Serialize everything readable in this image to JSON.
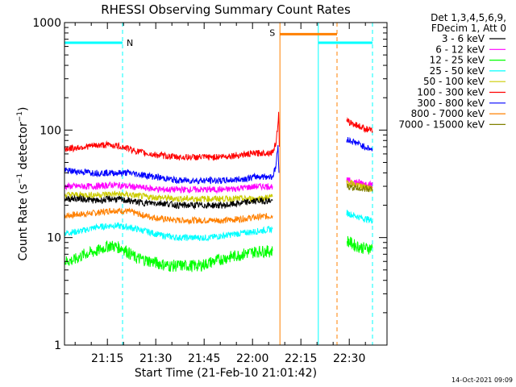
{
  "chart_data": {
    "type": "line",
    "title": "RHESSI Observing Summary Count Rates",
    "xlabel": "Start Time (21-Feb-10 21:01:42)",
    "ylabel": "Count Rate (s",
    "ylabel_sup": "−1",
    "ylabel_tail": " detector",
    "ylabel_tail_sup": "−1",
    "ylabel_end": ")",
    "y_scale": "log",
    "ylim": [
      1,
      1000
    ],
    "xlim_minutes": [
      0,
      100
    ],
    "x_ticks": [
      {
        "t": 13.3,
        "label": "21:15"
      },
      {
        "t": 28.3,
        "label": "21:30"
      },
      {
        "t": 43.3,
        "label": "21:45"
      },
      {
        "t": 58.3,
        "label": "22:00"
      },
      {
        "t": 73.3,
        "label": "22:15"
      },
      {
        "t": 88.3,
        "label": "22:30"
      }
    ],
    "y_ticks": [
      {
        "v": 1,
        "label": "1"
      },
      {
        "v": 10,
        "label": "10"
      },
      {
        "v": 100,
        "label": "100"
      },
      {
        "v": 1000,
        "label": "1000"
      }
    ],
    "legend_header": [
      "Det 1,3,4,5,6,9,",
      "FDecim 1, Att 0"
    ],
    "series": [
      {
        "name": "3 - 6 keV",
        "color": "#000000",
        "pre": [
          [
            0,
            23
          ],
          [
            5,
            23
          ],
          [
            10,
            22
          ],
          [
            15,
            23
          ],
          [
            20,
            22
          ],
          [
            25,
            21
          ],
          [
            30,
            21
          ],
          [
            35,
            20
          ],
          [
            40,
            20
          ],
          [
            45,
            20
          ],
          [
            50,
            20
          ],
          [
            55,
            21
          ],
          [
            60,
            22
          ],
          [
            64.5,
            22
          ]
        ],
        "post": []
      },
      {
        "name": "6 - 12 keV",
        "color": "#ff00ff",
        "pre": [
          [
            0,
            30
          ],
          [
            5,
            30
          ],
          [
            10,
            30
          ],
          [
            15,
            31
          ],
          [
            20,
            30
          ],
          [
            25,
            29
          ],
          [
            30,
            28
          ],
          [
            35,
            28
          ],
          [
            40,
            28
          ],
          [
            45,
            28
          ],
          [
            50,
            28
          ],
          [
            55,
            29
          ],
          [
            60,
            30
          ],
          [
            64.5,
            30
          ]
        ],
        "post": [
          [
            87.5,
            34
          ],
          [
            90,
            33
          ],
          [
            93,
            32
          ],
          [
            95.5,
            31
          ]
        ]
      },
      {
        "name": "12 - 25 keV",
        "color": "#00ff00",
        "pre": [
          [
            0,
            6
          ],
          [
            3,
            6.2
          ],
          [
            6,
            7
          ],
          [
            10,
            7.5
          ],
          [
            14,
            8.5
          ],
          [
            18,
            8
          ],
          [
            22,
            6.5
          ],
          [
            27,
            6
          ],
          [
            32,
            5.5
          ],
          [
            37,
            5.5
          ],
          [
            42,
            5.5
          ],
          [
            46,
            6
          ],
          [
            50,
            6.5
          ],
          [
            55,
            7
          ],
          [
            60,
            7.5
          ],
          [
            64.5,
            7.5
          ]
        ],
        "post": [
          [
            87.5,
            9.5
          ],
          [
            90,
            8.5
          ],
          [
            93,
            8
          ],
          [
            95.5,
            8
          ]
        ]
      },
      {
        "name": "25 - 50 keV",
        "color": "#00ffff",
        "pre": [
          [
            0,
            11
          ],
          [
            5,
            11.5
          ],
          [
            10,
            12.5
          ],
          [
            15,
            13
          ],
          [
            20,
            12.5
          ],
          [
            25,
            11.5
          ],
          [
            30,
            10.5
          ],
          [
            35,
            10
          ],
          [
            40,
            10
          ],
          [
            45,
            10
          ],
          [
            50,
            10.5
          ],
          [
            55,
            11
          ],
          [
            60,
            11.5
          ],
          [
            64.5,
            12
          ]
        ],
        "post": [
          [
            87.5,
            17
          ],
          [
            90,
            16
          ],
          [
            93,
            15
          ],
          [
            95.5,
            14.5
          ]
        ]
      },
      {
        "name": "50 - 100 keV",
        "color": "#cccc00",
        "pre": [
          [
            0,
            25
          ],
          [
            5,
            25
          ],
          [
            10,
            25
          ],
          [
            15,
            25.5
          ],
          [
            20,
            25
          ],
          [
            25,
            24
          ],
          [
            30,
            23.5
          ],
          [
            35,
            23
          ],
          [
            40,
            23
          ],
          [
            45,
            23
          ],
          [
            50,
            23
          ],
          [
            55,
            23
          ],
          [
            60,
            23
          ],
          [
            64.5,
            24
          ]
        ],
        "post": [
          [
            87.5,
            33
          ],
          [
            90,
            31
          ],
          [
            93,
            30
          ],
          [
            95.5,
            28
          ]
        ]
      },
      {
        "name": "100 - 300 keV",
        "color": "#ff0000",
        "pre": [
          [
            0,
            67
          ],
          [
            3,
            68
          ],
          [
            6,
            70
          ],
          [
            10,
            72
          ],
          [
            14,
            73
          ],
          [
            18,
            70
          ],
          [
            22,
            64
          ],
          [
            26,
            60
          ],
          [
            30,
            58
          ],
          [
            35,
            56
          ],
          [
            40,
            56
          ],
          [
            45,
            56
          ],
          [
            50,
            57
          ],
          [
            55,
            59
          ],
          [
            60,
            61
          ],
          [
            64.5,
            62
          ],
          [
            65.5,
            75
          ],
          [
            66,
            100
          ],
          [
            66.4,
            140
          ],
          [
            66.6,
            70
          ]
        ],
        "post": [
          [
            87.5,
            120
          ],
          [
            88.5,
            118
          ],
          [
            91,
            110
          ],
          [
            93,
            104
          ],
          [
            95.5,
            98
          ]
        ]
      },
      {
        "name": "300 - 800 keV",
        "color": "#0000ff",
        "pre": [
          [
            0,
            42
          ],
          [
            5,
            41
          ],
          [
            10,
            40
          ],
          [
            15,
            40
          ],
          [
            20,
            40
          ],
          [
            25,
            38
          ],
          [
            30,
            36
          ],
          [
            35,
            34
          ],
          [
            40,
            34
          ],
          [
            45,
            34
          ],
          [
            50,
            34
          ],
          [
            55,
            35
          ],
          [
            60,
            37
          ],
          [
            64.5,
            37
          ],
          [
            65.5,
            45
          ],
          [
            66.2,
            70
          ],
          [
            66.5,
            40
          ]
        ],
        "post": [
          [
            87.5,
            82
          ],
          [
            88.5,
            80
          ],
          [
            91,
            75
          ],
          [
            93,
            70
          ],
          [
            95.5,
            66
          ]
        ]
      },
      {
        "name": "800 - 7000 keV",
        "color": "#ff8000",
        "pre": [
          [
            0,
            16
          ],
          [
            5,
            16.5
          ],
          [
            10,
            17
          ],
          [
            15,
            18
          ],
          [
            20,
            17.5
          ],
          [
            25,
            16
          ],
          [
            30,
            15
          ],
          [
            35,
            14.5
          ],
          [
            40,
            14.5
          ],
          [
            45,
            14.5
          ],
          [
            50,
            14.5
          ],
          [
            55,
            15
          ],
          [
            60,
            15.5
          ],
          [
            64.5,
            16
          ]
        ],
        "post": [
          [
            87.5,
            33
          ],
          [
            88.5,
            32
          ],
          [
            91,
            31
          ],
          [
            93,
            30
          ],
          [
            95.5,
            29
          ]
        ]
      },
      {
        "name": "7000 - 15000 keV",
        "color": "#808000",
        "pre": [],
        "post": [
          [
            87.5,
            30
          ],
          [
            90,
            29
          ],
          [
            93,
            28.5
          ],
          [
            95.5,
            28
          ]
        ]
      }
    ],
    "flags": {
      "night": {
        "label": "N",
        "color": "#00ffff",
        "bars": [
          [
            0,
            18
          ],
          [
            78.7,
            95.5
          ]
        ],
        "level": 650
      },
      "saa": {
        "label": "S",
        "color": "#ff8000",
        "bars": [
          [
            66.8,
            84.5
          ]
        ],
        "level": 780
      },
      "vlines": [
        {
          "t": 0,
          "color": "#00ffff",
          "dash": false
        },
        {
          "t": 18,
          "color": "#00ffff",
          "dash": true
        },
        {
          "t": 66.8,
          "color": "#ff8000",
          "dash": false
        },
        {
          "t": 78.7,
          "color": "#00ffff",
          "dash": false
        },
        {
          "t": 84.5,
          "color": "#ff8000",
          "dash": true
        },
        {
          "t": 95.5,
          "color": "#00ffff",
          "dash": true
        }
      ]
    }
  },
  "footer": {
    "timestamp": "14-Oct-2021 09:09"
  }
}
